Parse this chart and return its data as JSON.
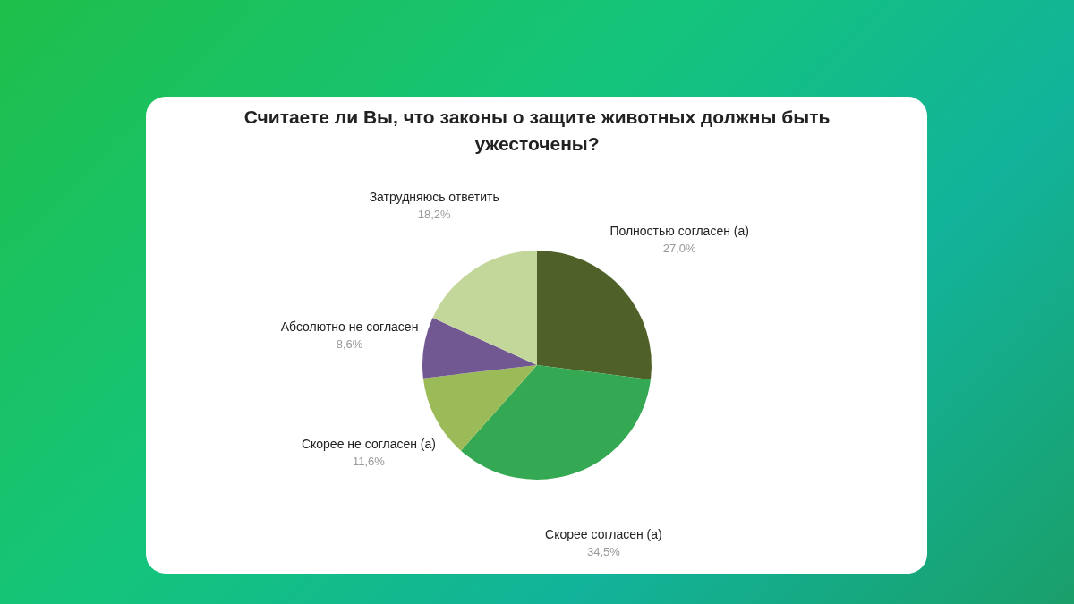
{
  "chart_data": {
    "type": "pie",
    "title": "Считаете ли Вы, что законы о защите животных должны быть ужесточены?",
    "categories": [
      "Полностью согласен (а)",
      "Скорее согласен (а)",
      "Скорее не согласен (а)",
      "Абсолютно не согласен",
      "Затрудняюсь ответить"
    ],
    "values": [
      27.0,
      34.5,
      11.6,
      8.6,
      18.2
    ],
    "value_labels": [
      "27,0%",
      "34,5%",
      "11,6%",
      "8,6%",
      "18,2%"
    ],
    "colors": [
      "#4f6128",
      "#34a853",
      "#9bbb59",
      "#715893",
      "#c4d79b"
    ],
    "legend": false
  }
}
